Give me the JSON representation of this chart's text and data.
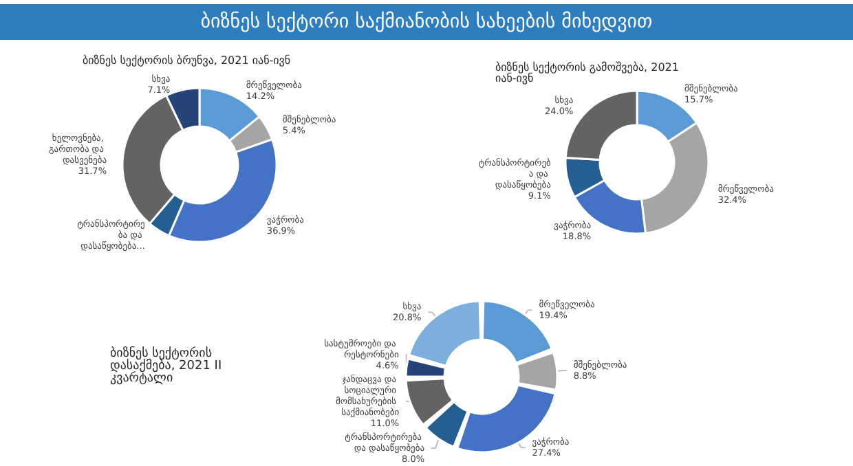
{
  "chart_data": [
    {
      "type": "donut",
      "title": "ბიზნეს სექტორი საქმიანობის სახეების მიხედვით",
      "subtitle": "ბიზნეს სექტორის ბრუნვა, 2021 იან-ივნ",
      "categories": [
        "მრეწველობა",
        "მშენებლობა",
        "ვაჭრობა",
        "ტრანსპორტირება და დასაწყობება...",
        "ხელოვნება, გართობა და დასვენება",
        "სხვა"
      ],
      "values": [
        14.2,
        5.4,
        36.9,
        4.7,
        31.7,
        7.1
      ],
      "value_labels": [
        "14.2%",
        "5.4%",
        "36.9%",
        null,
        "31.7%",
        "7.1%"
      ],
      "colors": [
        "#5b9bd5",
        "#a5a5a5",
        "#4472c4",
        "#255e91",
        "#636363",
        "#264478"
      ],
      "legend": false
    },
    {
      "type": "donut",
      "title": "ბიზნეს სექტორის გამოშვება, 2021 იან-ივნ",
      "categories": [
        "მშენებლობა",
        "მრეწველობა",
        "ვაჭრობა",
        "ტრანსპორტირება და დასაწყობება",
        "სხვა"
      ],
      "values": [
        15.7,
        32.4,
        18.8,
        9.1,
        24.0
      ],
      "value_labels": [
        "15.7%",
        "32.4%",
        "18.8%",
        "9.1%",
        "24.0%"
      ],
      "colors": [
        "#5b9bd5",
        "#a5a5a5",
        "#4472c4",
        "#255e91",
        "#636363"
      ],
      "legend": false
    },
    {
      "type": "donut",
      "title": "ბიზნეს სექტორის დასაქმება, 2021 II კვარტალი",
      "categories": [
        "მრეწველობა",
        "მშენებლობა",
        "ვაჭრობა",
        "ტრანსპორტირება და დასაწყობება",
        "ჯანდაცვა და სოციალური მომსახურების საქმიანობები",
        "სასტუმროები და რესტორნები",
        "სხვა"
      ],
      "values": [
        19.4,
        8.8,
        27.4,
        8.0,
        11.0,
        4.6,
        20.8
      ],
      "value_labels": [
        "19.4%",
        "8.8%",
        "27.4%",
        "8.0%",
        "11.0%",
        "4.6%",
        "20.8%"
      ],
      "colors": [
        "#5b9bd5",
        "#a5a5a5",
        "#4472c4",
        "#255e91",
        "#636363",
        "#264478",
        "#7cafdd"
      ],
      "legend": false
    }
  ]
}
